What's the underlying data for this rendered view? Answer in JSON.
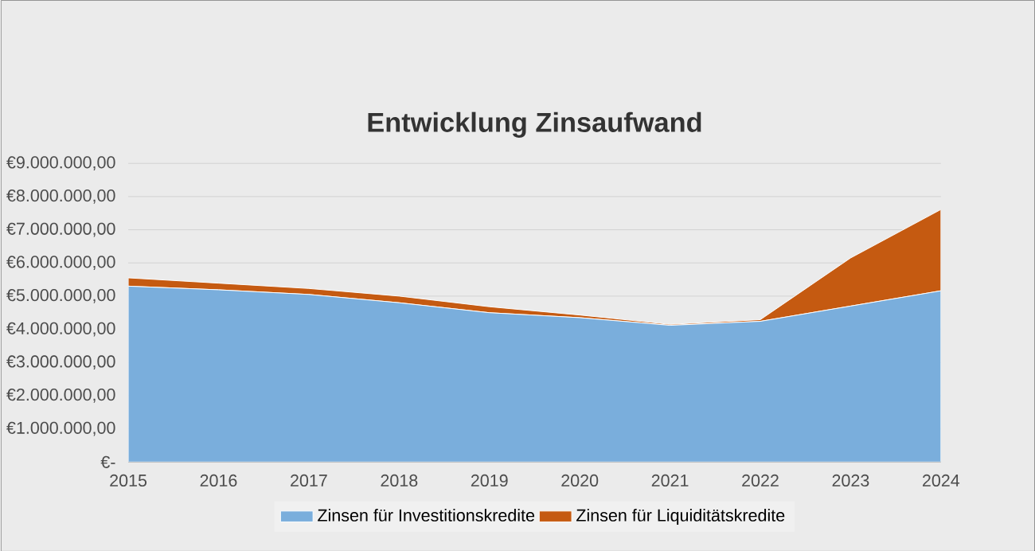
{
  "chart_data": {
    "type": "area",
    "title": "Entwicklung Zinsaufwand",
    "stacked": true,
    "categories": [
      "2015",
      "2016",
      "2017",
      "2018",
      "2019",
      "2020",
      "2021",
      "2022",
      "2023",
      "2024"
    ],
    "series": [
      {
        "name": "Zinsen für Investitionskredite",
        "color": "#7aaedc",
        "values": [
          5300000,
          5190000,
          5050000,
          4800000,
          4500000,
          4350000,
          4120000,
          4240000,
          4700000,
          5160000
        ]
      },
      {
        "name": "Zinsen für Liquiditätskredite",
        "color": "#c55a11",
        "values": [
          250000,
          200000,
          180000,
          200000,
          180000,
          80000,
          30000,
          50000,
          1450000,
          2450000
        ]
      }
    ],
    "ylim": [
      0,
      9000000
    ],
    "yticks": [
      {
        "value": 0,
        "label": "€-"
      },
      {
        "value": 1000000,
        "label": "€1.000.000,00"
      },
      {
        "value": 2000000,
        "label": "€2.000.000,00"
      },
      {
        "value": 3000000,
        "label": "€3.000.000,00"
      },
      {
        "value": 4000000,
        "label": "€4.000.000,00"
      },
      {
        "value": 5000000,
        "label": "€5.000.000,00"
      },
      {
        "value": 6000000,
        "label": "€6.000.000,00"
      },
      {
        "value": 7000000,
        "label": "€7.000.000,00"
      },
      {
        "value": 8000000,
        "label": "€8.000.000,00"
      },
      {
        "value": 9000000,
        "label": "€9.000.000,00"
      }
    ],
    "grid": "y",
    "legend": "bottom"
  }
}
